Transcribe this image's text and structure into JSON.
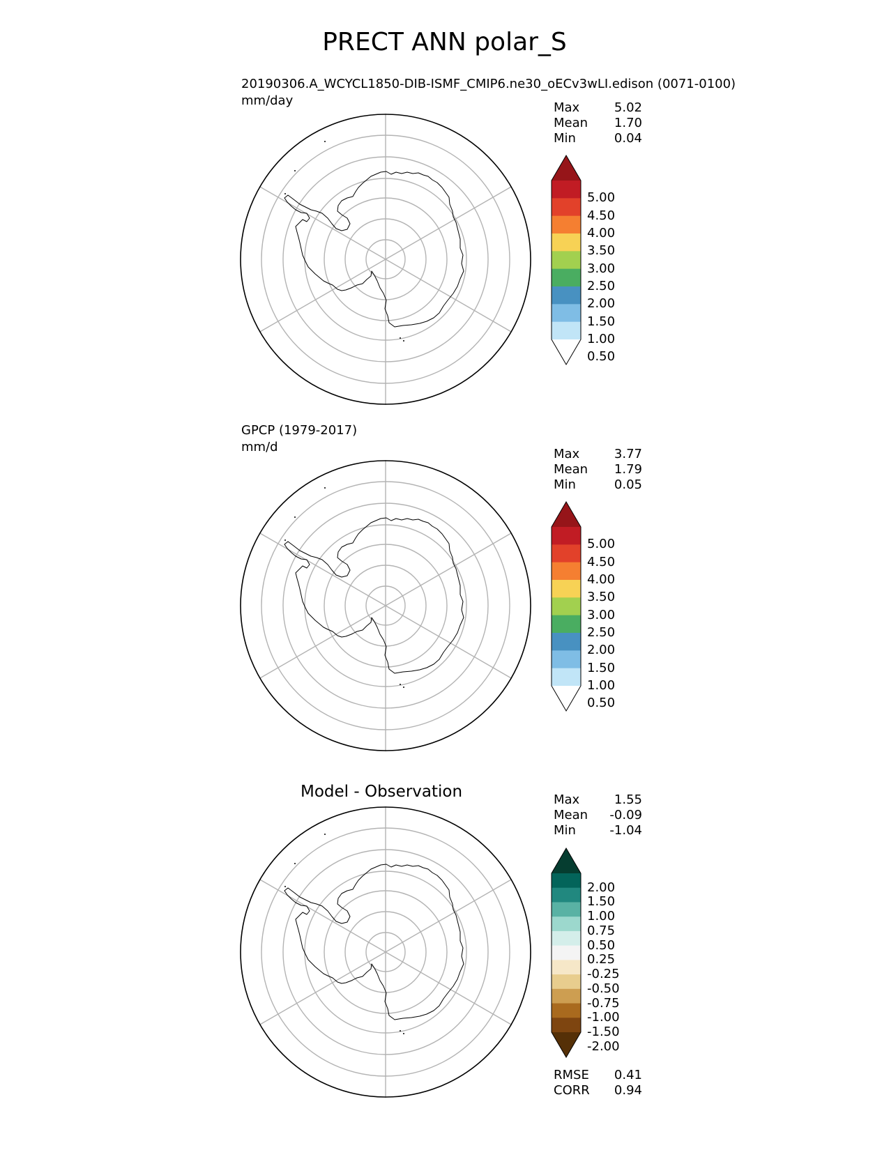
{
  "title": "PRECT ANN polar_S",
  "panels": [
    {
      "name": "test",
      "subtitle_left": "20190306.A_WCYCL1850-DIB-ISMF_CMIP6.ne30_oECv3wLI.edison (0071-0100)",
      "units": "mm/day",
      "stats": [
        {
          "label": "Max",
          "value": "5.02"
        },
        {
          "label": "Mean",
          "value": "1.70"
        },
        {
          "label": "Min",
          "value": "0.04"
        }
      ],
      "colorbar": {
        "ticks": [
          "5.00",
          "4.50",
          "4.00",
          "3.50",
          "3.00",
          "2.50",
          "2.00",
          "1.50",
          "1.00",
          "0.50"
        ],
        "colors": [
          "#961519",
          "#c11c24",
          "#e2412a",
          "#f57f31",
          "#f7d255",
          "#a2d04f",
          "#4aad61",
          "#4891c1",
          "#7fbde5",
          "#c1e5f7",
          "#ffffff"
        ]
      }
    },
    {
      "name": "reference",
      "subtitle_left": "GPCP (1979-2017)",
      "units": "mm/d",
      "stats": [
        {
          "label": "Max",
          "value": "3.77"
        },
        {
          "label": "Mean",
          "value": "1.79"
        },
        {
          "label": "Min",
          "value": "0.05"
        }
      ],
      "colorbar": {
        "ticks": [
          "5.00",
          "4.50",
          "4.00",
          "3.50",
          "3.00",
          "2.50",
          "2.00",
          "1.50",
          "1.00",
          "0.50"
        ],
        "colors": [
          "#961519",
          "#c11c24",
          "#e2412a",
          "#f57f31",
          "#f7d255",
          "#a2d04f",
          "#4aad61",
          "#4891c1",
          "#7fbde5",
          "#c1e5f7",
          "#ffffff"
        ]
      }
    },
    {
      "name": "difference",
      "center_title": "Model - Observation",
      "stats": [
        {
          "label": "Max",
          "value": "1.55"
        },
        {
          "label": "Mean",
          "value": "-0.09"
        },
        {
          "label": "Min",
          "value": "-1.04"
        }
      ],
      "metrics": [
        {
          "label": "RMSE",
          "value": "0.41"
        },
        {
          "label": "CORR",
          "value": "0.94"
        }
      ],
      "colorbar": {
        "ticks": [
          "2.00",
          "1.50",
          "1.00",
          "0.75",
          "0.50",
          "0.25",
          "-0.25",
          "-0.50",
          "-0.75",
          "-1.00",
          "-1.50",
          "-2.00"
        ],
        "colors": [
          "#053d30",
          "#03645a",
          "#21887f",
          "#59b2a4",
          "#9cd8cd",
          "#d4eeea",
          "#f4f4f4",
          "#f6e7c8",
          "#e8cd8e",
          "#cd9e51",
          "#a96a1e",
          "#7e4510",
          "#553007"
        ]
      }
    }
  ],
  "chart_data": {
    "type": "heatmap",
    "projection": "south polar stereographic",
    "variable": "PRECT",
    "season": "ANN",
    "region": "polar_S",
    "panels": [
      {
        "label": "20190306.A_WCYCL1850-DIB-ISMF_CMIP6.ne30_oECv3wLI.edison (0071-0100)",
        "units": "mm/day",
        "max": 5.02,
        "mean": 1.7,
        "min": 0.04,
        "levels": [
          0.5,
          1.0,
          1.5,
          2.0,
          2.5,
          3.0,
          3.5,
          4.0,
          4.5,
          5.0
        ],
        "extend": "both"
      },
      {
        "label": "GPCP (1979-2017)",
        "units": "mm/d",
        "max": 3.77,
        "mean": 1.79,
        "min": 0.05,
        "levels": [
          0.5,
          1.0,
          1.5,
          2.0,
          2.5,
          3.0,
          3.5,
          4.0,
          4.5,
          5.0
        ],
        "extend": "both"
      },
      {
        "label": "Model - Observation",
        "max": 1.55,
        "mean": -0.09,
        "min": -1.04,
        "levels": [
          -2.0,
          -1.5,
          -1.0,
          -0.75,
          -0.5,
          -0.25,
          0.25,
          0.5,
          0.75,
          1.0,
          1.5,
          2.0
        ],
        "extend": "both",
        "rmse": 0.41,
        "corr": 0.94
      }
    ],
    "grid": true
  }
}
